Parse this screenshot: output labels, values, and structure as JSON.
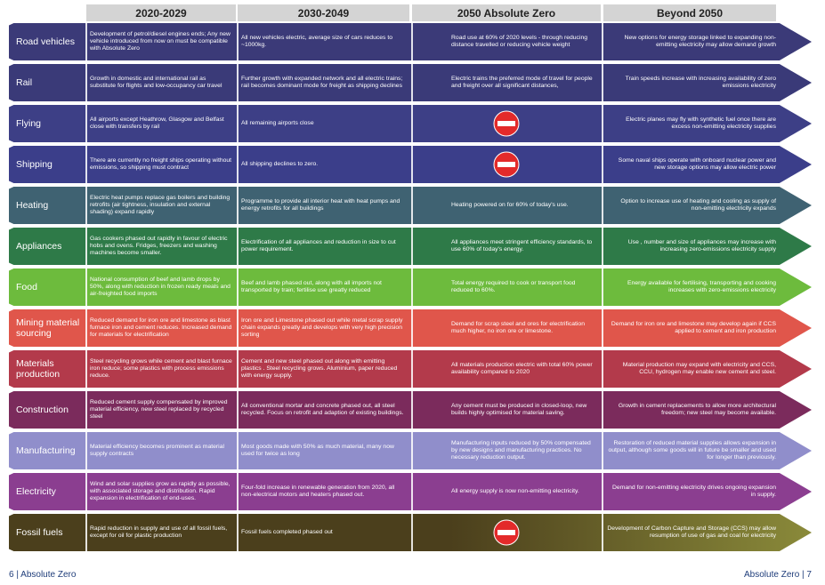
{
  "header": {
    "columns": [
      "2020-2029",
      "2030-2049",
      "2050 Absolute Zero",
      "Beyond 2050"
    ]
  },
  "rows": [
    {
      "label": "Road vehicles",
      "cells": [
        "Development of petrol/diesel engines ends; Any new vehicle introduced from now on must be compatible with Absolute Zero",
        "All new vehicles electric, average size of cars reduces to ~1000kg.",
        "Road use at 60% of 2020 levels - through reducing distance travelled or reducing vehicle weight",
        "New options for energy storage linked to expanding non-emitting electricity may allow demand growth"
      ]
    },
    {
      "label": "Rail",
      "cells": [
        "Growth in domestic and international rail as substitute for flights and low-occupancy car travel",
        "Further growth with expanded network and all electric trains; rail becomes dominant mode for freight as shipping declines",
        "Electric trains the preferred mode of travel for people and freight over all significant distances,",
        "Train speeds increase with increasing availability of zero emissions electricity"
      ]
    },
    {
      "label": "Flying",
      "cells": [
        "All airports except Heathrow, Glasgow and Belfast close with transfers by rail",
        "All remaining airports close",
        null,
        "Electric planes may fly with synthetic fuel once there are excess non-emitting electricity supplies"
      ]
    },
    {
      "label": "Shipping",
      "cells": [
        "There are currently no freight ships operating without emissions, so shipping must contract",
        "All shipping declines to zero.",
        null,
        "Some naval ships operate with onboard nuclear power and new storage options may allow electric power"
      ]
    },
    {
      "label": "Heating",
      "cells": [
        "Electric heat pumps replace gas boilers and building retrofits (air tightness, insulation and external shading) expand rapidly",
        "Programme to provide all interior heat with heat pumps and energy retrofits for all buildings",
        "Heating powered on for 60% of today's use.",
        "Option to increase use of heating and cooling as supply of non-emitting electricity expands"
      ]
    },
    {
      "label": "Appliances",
      "cells": [
        "Gas cookers phased out rapidly in favour of electric hobs and ovens. Fridges, freezers and washing machines become smaller.",
        "Electrification of all appliances and reduction in size to cut power requirement.",
        "All appliances meet stringent efficiency standards, to use 60% of today's energy.",
        "Use , number and size of appliances may increase with increasing zero-emissions electricity supply"
      ]
    },
    {
      "label": "Food",
      "cells": [
        "National consumption of beef and lamb drops by 50%, along with reduction in frozen ready meals and air-freighted food imports",
        "Beef and lamb phased out, along with all imports not transported by train; fertilise use greatly reduced",
        "Total energy required to cook or transport food reduced to 60%.",
        "Energy available for fertilising, transporting and cooking increases with zero-emissions electricity"
      ]
    },
    {
      "label": "Mining material sourcing",
      "cells": [
        "Reduced demand for iron ore and limestone as blast furnace iron and cement reduces. Increased demand for materials for electrification",
        "Iron ore and Limestone phased out while metal scrap supply chain expands greatly and develops with very high precision sorting",
        "Demand for scrap steel and ores for electrification much higher, no iron ore or limestone.",
        "Demand for iron ore and limestone may develop again if CCS applied to cement and iron production"
      ]
    },
    {
      "label": "Materials production",
      "cells": [
        "Steel recycling grows while cement and blast furnace iron reduce; some plastics with process emissions reduce.",
        "Cement and new steel phased out along with emitting plastics . Steel recycling grows. Aluminium, paper reduced with energy supply.",
        "All materials production electric with total 60% power availability compared to 2020",
        "Material production may expand with electricity and CCS, CCU, hydrogen may enable new cement and steel."
      ]
    },
    {
      "label": "Construction",
      "cells": [
        "Reduced cement supply compensated by improved material efficiency, new steel replaced by recycled steel",
        "All conventional mortar and concrete phased out, all steel recycled. Focus on retrofit and adaption of existing buildings.",
        "Any cement must be produced in closed-loop, new builds highly optimised for material saving.",
        "Growth in cement replacements to allow more architectural freedom; new steel may become available."
      ]
    },
    {
      "label": "Manufacturing",
      "cells": [
        "Material efficiency becomes prominent as material supply contracts",
        "Most goods made with 50% as much material, many now used for twice as long",
        "Manufacturing inputs reduced by 50% compensated by new designs and manufacturing practices. No necessary reduction output.",
        "Restoration of reduced material supplies allows expansion in output, although some goods will in future be smaller and used for longer than previously."
      ]
    },
    {
      "label": "Electricity",
      "cells": [
        "Wind and solar supplies grow as rapidly as possible, with associated storage and distribution. Rapid expansion in electrification of end-uses.",
        "Four-fold increase in renewable generation from 2020, all non-electrical motors and heaters phased out.",
        "All energy supply is now non-emitting electricity.",
        "Demand for non-emitting electricity drives ongoing expansion in supply."
      ]
    },
    {
      "label": "Fossil fuels",
      "cells": [
        "Rapid reduction in supply and use of all fossil fuels, except for oil for plastic production",
        "Fossil fuels completed phased out",
        null,
        "Development of Carbon Capture and Storage (CCS) may allow resumption of use of gas and coal for electricity"
      ]
    }
  ],
  "footer": {
    "left": "6 | Absolute Zero",
    "right": "Absolute Zero | 7"
  }
}
